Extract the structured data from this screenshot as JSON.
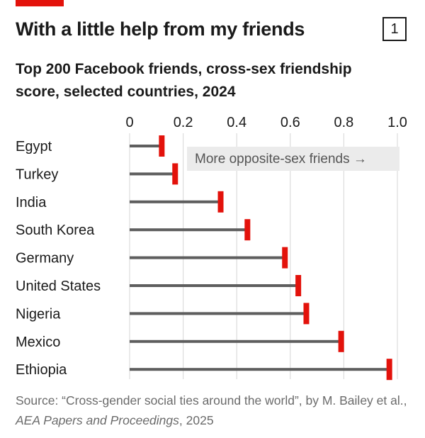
{
  "badge_number": "1",
  "colors": {
    "marker": "#e3120b",
    "bar": "#5e5e5e",
    "grid": "#dcdcdc",
    "annotation_box": "#ebebeb"
  },
  "chart_data": {
    "type": "bar",
    "title": "With a little help from my friends",
    "subtitle": "Top 200 Facebook friends, cross-sex friendship score, selected countries, 2024",
    "categories": [
      "Egypt",
      "Turkey",
      "India",
      "South Korea",
      "Germany",
      "United States",
      "Nigeria",
      "Mexico",
      "Ethiopia"
    ],
    "values": [
      0.12,
      0.17,
      0.34,
      0.44,
      0.58,
      0.63,
      0.66,
      0.79,
      0.97
    ],
    "xlim": [
      0,
      1.0
    ],
    "xticks": [
      0,
      0.2,
      0.4,
      0.6,
      0.8,
      1.0
    ],
    "xtick_labels": [
      "0",
      "0.2",
      "0.4",
      "0.6",
      "0.8",
      "1.0"
    ],
    "grid": true,
    "orientation": "horizontal",
    "annotation": "More opposite-sex friends →"
  },
  "source": {
    "prefix": "Source: “Cross-gender social ties around the world”, by M. Bailey et al., ",
    "journal": "AEA Papers and Proceedings",
    "suffix": ", 2025"
  }
}
